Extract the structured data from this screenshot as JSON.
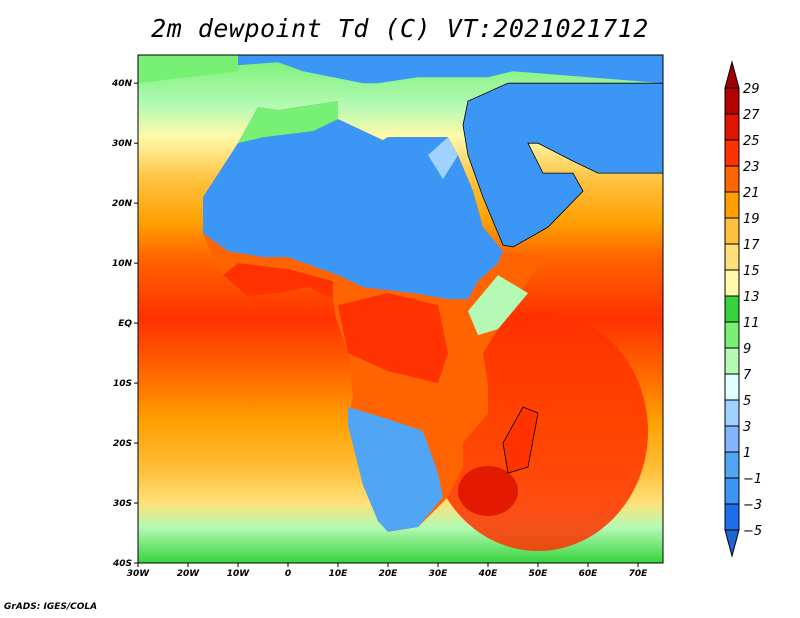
{
  "title": "2m dewpoint Td (C) VT:2021021712",
  "credit": "GrADS: IGES/COLA",
  "map": {
    "lon_range": [
      -30,
      75
    ],
    "lat_range": [
      -40,
      44.7
    ],
    "x_ticks": [
      {
        "lon": -30,
        "label": "30W"
      },
      {
        "lon": -20,
        "label": "20W"
      },
      {
        "lon": -10,
        "label": "10W"
      },
      {
        "lon": 0,
        "label": "0"
      },
      {
        "lon": 10,
        "label": "10E"
      },
      {
        "lon": 20,
        "label": "20E"
      },
      {
        "lon": 30,
        "label": "30E"
      },
      {
        "lon": 40,
        "label": "40E"
      },
      {
        "lon": 50,
        "label": "50E"
      },
      {
        "lon": 60,
        "label": "60E"
      },
      {
        "lon": 70,
        "label": "70E"
      }
    ],
    "y_ticks": [
      {
        "lat": 40,
        "label": "40N"
      },
      {
        "lat": 30,
        "label": "30N"
      },
      {
        "lat": 20,
        "label": "20N"
      },
      {
        "lat": 10,
        "label": "10N"
      },
      {
        "lat": 0,
        "label": "EQ"
      },
      {
        "lat": -10,
        "label": "10S"
      },
      {
        "lat": -20,
        "label": "20S"
      },
      {
        "lat": -30,
        "label": "30S"
      },
      {
        "lat": -40,
        "label": "40S"
      }
    ]
  },
  "colorbar": {
    "labels": [
      "29",
      "27",
      "25",
      "23",
      "21",
      "19",
      "17",
      "15",
      "13",
      "11",
      "9",
      "7",
      "5",
      "3",
      "1",
      "−1",
      "−3",
      "−5"
    ],
    "top_arrow_color": "#a00000",
    "bottom_arrow_color": "#1e64d2",
    "colors": [
      "#b40000",
      "#e01400",
      "#ff3200",
      "#ff6400",
      "#ffa000",
      "#ffc03c",
      "#ffe078",
      "#fffaaa",
      "#37d23c",
      "#78f073",
      "#b4fab4",
      "#e1ffff",
      "#a0d2ff",
      "#82b4ff",
      "#50a5f5",
      "#3c96f5",
      "#1e6eeb"
    ]
  }
}
